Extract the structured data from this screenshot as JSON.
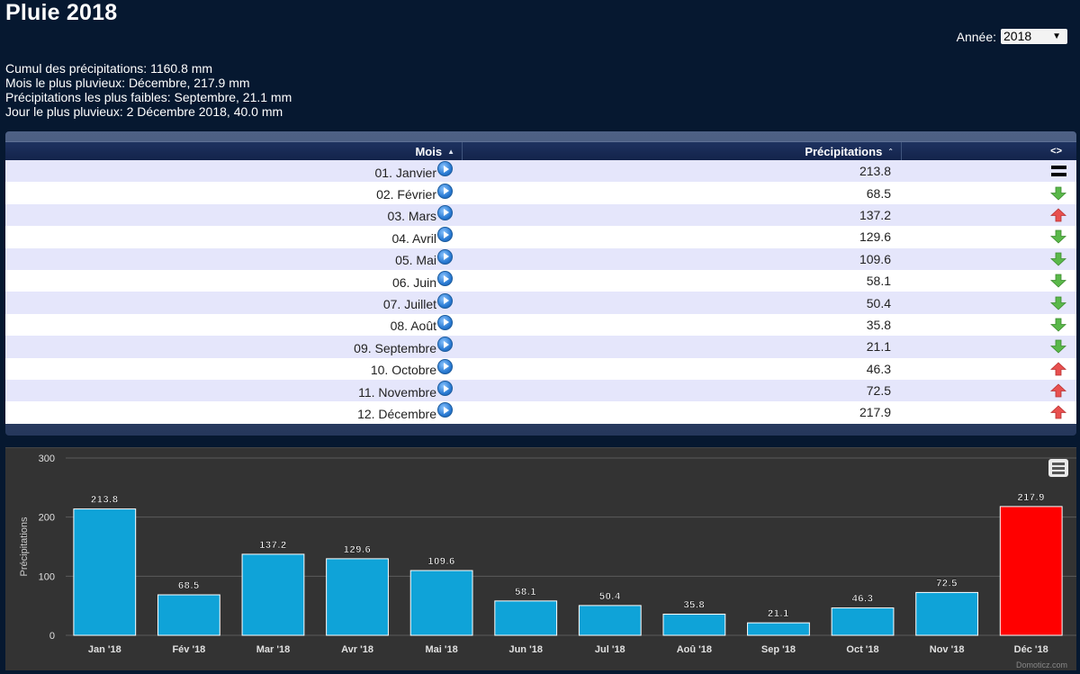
{
  "page": {
    "title": "Pluie 2018",
    "year_label": "Année:",
    "year_value": "2018"
  },
  "summary": {
    "total": "Cumul des précipitations: 1160.8 mm",
    "wettest_month": "Mois le plus pluvieux: Décembre, 217.9 mm",
    "driest_month": "Précipitations les plus faibles: Septembre, 21.1 mm",
    "wettest_day": "Jour le plus pluvieux: 2 Décembre 2018, 40.0 mm"
  },
  "table": {
    "headers": {
      "month": "Mois",
      "precip": "Précipitations",
      "diff": "<>"
    },
    "rows": [
      {
        "month": "01. Janvier",
        "value": "213.8",
        "trend": "equal"
      },
      {
        "month": "02. Février",
        "value": "68.5",
        "trend": "down"
      },
      {
        "month": "03. Mars",
        "value": "137.2",
        "trend": "up"
      },
      {
        "month": "04. Avril",
        "value": "129.6",
        "trend": "down"
      },
      {
        "month": "05. Mai",
        "value": "109.6",
        "trend": "down"
      },
      {
        "month": "06. Juin",
        "value": "58.1",
        "trend": "down"
      },
      {
        "month": "07. Juillet",
        "value": "50.4",
        "trend": "down"
      },
      {
        "month": "08. Août",
        "value": "35.8",
        "trend": "down"
      },
      {
        "month": "09. Septembre",
        "value": "21.1",
        "trend": "down"
      },
      {
        "month": "10. Octobre",
        "value": "46.3",
        "trend": "up"
      },
      {
        "month": "11. Novembre",
        "value": "72.5",
        "trend": "up"
      },
      {
        "month": "12. Décembre",
        "value": "217.9",
        "trend": "up"
      }
    ]
  },
  "chart_data": {
    "type": "bar",
    "categories": [
      "Jan '18",
      "Fév '18",
      "Mar '18",
      "Avr '18",
      "Mai '18",
      "Jun '18",
      "Jul '18",
      "Aoû '18",
      "Sep '18",
      "Oct '18",
      "Nov '18",
      "Déc '18"
    ],
    "values": [
      213.8,
      68.5,
      137.2,
      129.6,
      109.6,
      58.1,
      50.4,
      35.8,
      21.1,
      46.3,
      72.5,
      217.9
    ],
    "value_labels": [
      "213.8",
      "68.5",
      "137.2",
      "129.6",
      "109.6",
      "58.1",
      "50.4",
      "35.8",
      "21.1",
      "46.3",
      "72.5",
      "217.9"
    ],
    "ylabel": "Précipitations",
    "ylim": [
      0,
      300
    ],
    "yticks": [
      0,
      100,
      200,
      300
    ],
    "grid": true,
    "colors": {
      "default": "#0fa3d8",
      "highlight": "#ff0000"
    },
    "highlight_index": 11
  },
  "credits": "Domoticz.com"
}
